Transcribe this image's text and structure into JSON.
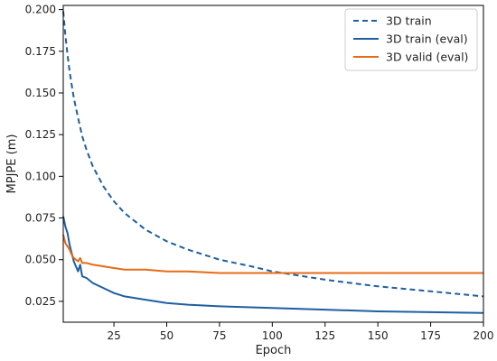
{
  "chart_data": {
    "type": "line",
    "xlabel": "Epoch",
    "ylabel": "MPJPE (m)",
    "xlim": [
      1,
      200
    ],
    "ylim": [
      0.0125,
      0.2025
    ],
    "xticks": [
      25,
      50,
      75,
      100,
      125,
      150,
      175,
      200
    ],
    "yticks": [
      0.025,
      0.05,
      0.075,
      0.1,
      0.125,
      0.15,
      0.175,
      0.2
    ],
    "ytick_labels": [
      "0.025",
      "0.050",
      "0.075",
      "0.100",
      "0.125",
      "0.150",
      "0.175",
      "0.200"
    ],
    "grid": false,
    "legend_position": "top-right",
    "series": [
      {
        "name": "3D train",
        "color": "#1f5fa0",
        "style": "dashed",
        "x": [
          1,
          2,
          3,
          4,
          5,
          6,
          8,
          10,
          12,
          15,
          20,
          25,
          30,
          40,
          50,
          60,
          75,
          90,
          100,
          125,
          150,
          175,
          200
        ],
        "y": [
          0.199,
          0.185,
          0.173,
          0.163,
          0.155,
          0.147,
          0.135,
          0.124,
          0.116,
          0.106,
          0.094,
          0.085,
          0.078,
          0.068,
          0.061,
          0.056,
          0.05,
          0.046,
          0.043,
          0.038,
          0.034,
          0.031,
          0.028
        ]
      },
      {
        "name": "3D train (eval)",
        "color": "#1f5fa0",
        "style": "solid",
        "x": [
          1,
          2,
          3,
          4,
          5,
          6,
          7,
          8,
          9,
          10,
          12,
          15,
          20,
          25,
          30,
          40,
          50,
          60,
          75,
          100,
          125,
          150,
          175,
          200
        ],
        "y": [
          0.076,
          0.07,
          0.066,
          0.059,
          0.054,
          0.049,
          0.046,
          0.043,
          0.047,
          0.04,
          0.039,
          0.036,
          0.033,
          0.03,
          0.028,
          0.026,
          0.024,
          0.023,
          0.022,
          0.021,
          0.02,
          0.019,
          0.0185,
          0.018
        ]
      },
      {
        "name": "3D valid (eval)",
        "color": "#e86a17",
        "style": "solid",
        "x": [
          1,
          2,
          3,
          4,
          5,
          6,
          7,
          8,
          9,
          10,
          12,
          15,
          20,
          25,
          30,
          40,
          50,
          60,
          75,
          100,
          125,
          150,
          175,
          200
        ],
        "y": [
          0.065,
          0.06,
          0.058,
          0.056,
          0.053,
          0.051,
          0.05,
          0.049,
          0.051,
          0.048,
          0.048,
          0.047,
          0.046,
          0.045,
          0.044,
          0.044,
          0.043,
          0.043,
          0.042,
          0.042,
          0.042,
          0.042,
          0.042,
          0.042
        ]
      }
    ]
  }
}
